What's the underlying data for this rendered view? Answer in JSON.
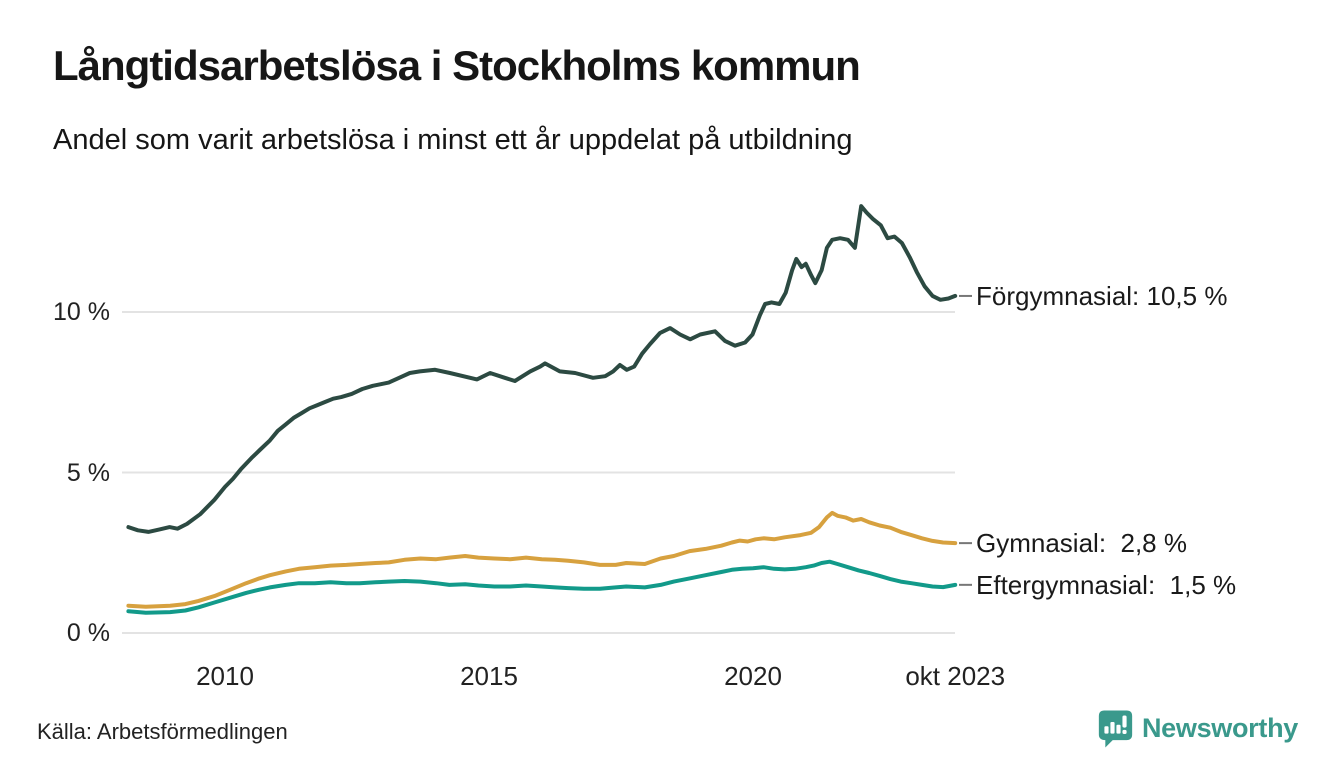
{
  "chart_data": {
    "type": "line",
    "title": "Långtidsarbetslösa i Stockholms kommun",
    "subtitle": "Andel som varit arbetslösa i minst ett år uppdelat på utbildning",
    "source": "Källa: Arbetsförmedlingen",
    "grid": "horizontal",
    "grid_color": "#e3e3e3",
    "leader_dash_color": "#777777",
    "legend_position": "right-end-labels",
    "x_axis": {
      "range": [
        2008.15,
        2023.83
      ],
      "ticks": [
        {
          "label": "2010",
          "year": 2010
        },
        {
          "label": "2015",
          "year": 2015
        },
        {
          "label": "2020",
          "year": 2020
        },
        {
          "label": "okt 2023",
          "year": 2023.83
        }
      ]
    },
    "y_axis": {
      "unit": "%",
      "range": [
        0,
        13.5
      ],
      "ticks": [
        {
          "label": "0 %",
          "value": 0
        },
        {
          "label": "5 %",
          "value": 5
        },
        {
          "label": "10 %",
          "value": 10
        }
      ]
    },
    "series": [
      {
        "id": "forgymnasial",
        "name": "Förgymnasial",
        "label": "Förgymnasial: 10,5 %",
        "end_value_label": "10,5 %",
        "color": "#2c4a42",
        "points": [
          [
            2008.17,
            3.3
          ],
          [
            2008.35,
            3.2
          ],
          [
            2008.55,
            3.15
          ],
          [
            2008.75,
            3.22
          ],
          [
            2008.95,
            3.3
          ],
          [
            2009.1,
            3.25
          ],
          [
            2009.28,
            3.4
          ],
          [
            2009.53,
            3.7
          ],
          [
            2009.8,
            4.15
          ],
          [
            2010.0,
            4.55
          ],
          [
            2010.15,
            4.8
          ],
          [
            2010.3,
            5.1
          ],
          [
            2010.5,
            5.45
          ],
          [
            2010.66,
            5.7
          ],
          [
            2010.85,
            6.0
          ],
          [
            2011.0,
            6.3
          ],
          [
            2011.15,
            6.5
          ],
          [
            2011.3,
            6.7
          ],
          [
            2011.45,
            6.85
          ],
          [
            2011.6,
            7.0
          ],
          [
            2011.75,
            7.1
          ],
          [
            2011.9,
            7.2
          ],
          [
            2012.05,
            7.3
          ],
          [
            2012.2,
            7.35
          ],
          [
            2012.4,
            7.45
          ],
          [
            2012.6,
            7.6
          ],
          [
            2012.8,
            7.7
          ],
          [
            2012.95,
            7.75
          ],
          [
            2013.1,
            7.8
          ],
          [
            2013.3,
            7.95
          ],
          [
            2013.5,
            8.1
          ],
          [
            2013.69,
            8.15
          ],
          [
            2013.98,
            8.2
          ],
          [
            2014.26,
            8.1
          ],
          [
            2014.77,
            7.9
          ],
          [
            2015.02,
            8.1
          ],
          [
            2015.3,
            7.95
          ],
          [
            2015.49,
            7.85
          ],
          [
            2015.78,
            8.15
          ],
          [
            2015.97,
            8.3
          ],
          [
            2016.06,
            8.4
          ],
          [
            2016.34,
            8.15
          ],
          [
            2016.63,
            8.1
          ],
          [
            2016.97,
            7.95
          ],
          [
            2017.2,
            8.0
          ],
          [
            2017.35,
            8.15
          ],
          [
            2017.48,
            8.35
          ],
          [
            2017.61,
            8.2
          ],
          [
            2017.75,
            8.3
          ],
          [
            2017.9,
            8.7
          ],
          [
            2018.05,
            9.0
          ],
          [
            2018.24,
            9.35
          ],
          [
            2018.43,
            9.5
          ],
          [
            2018.62,
            9.3
          ],
          [
            2018.81,
            9.15
          ],
          [
            2019.0,
            9.3
          ],
          [
            2019.28,
            9.4
          ],
          [
            2019.47,
            9.1
          ],
          [
            2019.66,
            8.95
          ],
          [
            2019.85,
            9.05
          ],
          [
            2019.99,
            9.3
          ],
          [
            2020.13,
            9.9
          ],
          [
            2020.23,
            10.25
          ],
          [
            2020.35,
            10.3
          ],
          [
            2020.5,
            10.25
          ],
          [
            2020.62,
            10.6
          ],
          [
            2020.74,
            11.3
          ],
          [
            2020.82,
            11.65
          ],
          [
            2020.92,
            11.4
          ],
          [
            2021.0,
            11.5
          ],
          [
            2021.1,
            11.15
          ],
          [
            2021.18,
            10.9
          ],
          [
            2021.3,
            11.3
          ],
          [
            2021.4,
            12.0
          ],
          [
            2021.5,
            12.25
          ],
          [
            2021.65,
            12.3
          ],
          [
            2021.8,
            12.25
          ],
          [
            2021.93,
            12.0
          ],
          [
            2022.05,
            13.3
          ],
          [
            2022.15,
            13.1
          ],
          [
            2022.27,
            12.9
          ],
          [
            2022.42,
            12.7
          ],
          [
            2022.55,
            12.3
          ],
          [
            2022.68,
            12.35
          ],
          [
            2022.82,
            12.15
          ],
          [
            2022.97,
            11.7
          ],
          [
            2023.1,
            11.25
          ],
          [
            2023.25,
            10.8
          ],
          [
            2023.4,
            10.5
          ],
          [
            2023.55,
            10.38
          ],
          [
            2023.7,
            10.42
          ],
          [
            2023.83,
            10.5
          ]
        ]
      },
      {
        "id": "gymnasial",
        "name": "Gymnasial",
        "label": "Gymnasial:  2,8 %",
        "end_value_label": "2,8 %",
        "color": "#d7a13f",
        "points": [
          [
            2008.17,
            0.85
          ],
          [
            2008.5,
            0.82
          ],
          [
            2008.96,
            0.85
          ],
          [
            2009.25,
            0.9
          ],
          [
            2009.5,
            1.0
          ],
          [
            2009.8,
            1.15
          ],
          [
            2010.1,
            1.35
          ],
          [
            2010.4,
            1.55
          ],
          [
            2010.65,
            1.7
          ],
          [
            2010.85,
            1.8
          ],
          [
            2011.15,
            1.92
          ],
          [
            2011.4,
            2.0
          ],
          [
            2011.7,
            2.05
          ],
          [
            2012.0,
            2.1
          ],
          [
            2012.3,
            2.12
          ],
          [
            2012.55,
            2.15
          ],
          [
            2012.85,
            2.18
          ],
          [
            2013.1,
            2.2
          ],
          [
            2013.4,
            2.28
          ],
          [
            2013.7,
            2.32
          ],
          [
            2014.0,
            2.3
          ],
          [
            2014.25,
            2.35
          ],
          [
            2014.55,
            2.4
          ],
          [
            2014.8,
            2.35
          ],
          [
            2015.1,
            2.32
          ],
          [
            2015.4,
            2.3
          ],
          [
            2015.7,
            2.35
          ],
          [
            2016.0,
            2.3
          ],
          [
            2016.25,
            2.28
          ],
          [
            2016.5,
            2.25
          ],
          [
            2016.8,
            2.2
          ],
          [
            2017.1,
            2.12
          ],
          [
            2017.4,
            2.12
          ],
          [
            2017.6,
            2.18
          ],
          [
            2017.95,
            2.15
          ],
          [
            2018.25,
            2.32
          ],
          [
            2018.5,
            2.4
          ],
          [
            2018.8,
            2.55
          ],
          [
            2019.1,
            2.62
          ],
          [
            2019.4,
            2.72
          ],
          [
            2019.6,
            2.82
          ],
          [
            2019.75,
            2.88
          ],
          [
            2019.9,
            2.85
          ],
          [
            2020.05,
            2.92
          ],
          [
            2020.2,
            2.95
          ],
          [
            2020.4,
            2.92
          ],
          [
            2020.6,
            2.98
          ],
          [
            2020.9,
            3.05
          ],
          [
            2021.1,
            3.12
          ],
          [
            2021.25,
            3.3
          ],
          [
            2021.4,
            3.6
          ],
          [
            2021.5,
            3.74
          ],
          [
            2021.6,
            3.65
          ],
          [
            2021.75,
            3.6
          ],
          [
            2021.9,
            3.5
          ],
          [
            2022.05,
            3.55
          ],
          [
            2022.2,
            3.45
          ],
          [
            2022.4,
            3.35
          ],
          [
            2022.6,
            3.28
          ],
          [
            2022.8,
            3.15
          ],
          [
            2023.0,
            3.05
          ],
          [
            2023.2,
            2.95
          ],
          [
            2023.4,
            2.87
          ],
          [
            2023.6,
            2.82
          ],
          [
            2023.83,
            2.8
          ]
        ]
      },
      {
        "id": "eftergymnasial",
        "name": "Eftergymnasial",
        "label": "Eftergymnasial:  1,5 %",
        "end_value_label": "1,5 %",
        "color": "#129a8a",
        "points": [
          [
            2008.17,
            0.68
          ],
          [
            2008.5,
            0.63
          ],
          [
            2008.96,
            0.65
          ],
          [
            2009.25,
            0.7
          ],
          [
            2009.5,
            0.8
          ],
          [
            2009.8,
            0.95
          ],
          [
            2010.1,
            1.1
          ],
          [
            2010.4,
            1.25
          ],
          [
            2010.65,
            1.35
          ],
          [
            2010.85,
            1.42
          ],
          [
            2011.15,
            1.5
          ],
          [
            2011.4,
            1.55
          ],
          [
            2011.7,
            1.55
          ],
          [
            2012.0,
            1.58
          ],
          [
            2012.3,
            1.55
          ],
          [
            2012.55,
            1.55
          ],
          [
            2012.85,
            1.58
          ],
          [
            2013.1,
            1.6
          ],
          [
            2013.4,
            1.62
          ],
          [
            2013.7,
            1.6
          ],
          [
            2014.0,
            1.55
          ],
          [
            2014.25,
            1.5
          ],
          [
            2014.55,
            1.52
          ],
          [
            2014.8,
            1.48
          ],
          [
            2015.1,
            1.45
          ],
          [
            2015.4,
            1.45
          ],
          [
            2015.7,
            1.48
          ],
          [
            2016.0,
            1.45
          ],
          [
            2016.25,
            1.42
          ],
          [
            2016.5,
            1.4
          ],
          [
            2016.8,
            1.38
          ],
          [
            2017.1,
            1.38
          ],
          [
            2017.4,
            1.42
          ],
          [
            2017.6,
            1.45
          ],
          [
            2017.95,
            1.42
          ],
          [
            2018.25,
            1.5
          ],
          [
            2018.5,
            1.6
          ],
          [
            2018.8,
            1.7
          ],
          [
            2019.1,
            1.8
          ],
          [
            2019.4,
            1.9
          ],
          [
            2019.6,
            1.97
          ],
          [
            2019.8,
            2.0
          ],
          [
            2020.0,
            2.02
          ],
          [
            2020.2,
            2.05
          ],
          [
            2020.4,
            2.0
          ],
          [
            2020.6,
            1.98
          ],
          [
            2020.8,
            2.0
          ],
          [
            2021.0,
            2.05
          ],
          [
            2021.15,
            2.1
          ],
          [
            2021.3,
            2.18
          ],
          [
            2021.45,
            2.22
          ],
          [
            2021.6,
            2.15
          ],
          [
            2021.8,
            2.05
          ],
          [
            2022.0,
            1.95
          ],
          [
            2022.2,
            1.87
          ],
          [
            2022.4,
            1.78
          ],
          [
            2022.6,
            1.68
          ],
          [
            2022.8,
            1.6
          ],
          [
            2023.0,
            1.55
          ],
          [
            2023.2,
            1.5
          ],
          [
            2023.4,
            1.45
          ],
          [
            2023.6,
            1.43
          ],
          [
            2023.83,
            1.5
          ]
        ]
      }
    ]
  },
  "footer": {
    "brand": "Newsworthy",
    "brand_color": "#3a998c"
  }
}
